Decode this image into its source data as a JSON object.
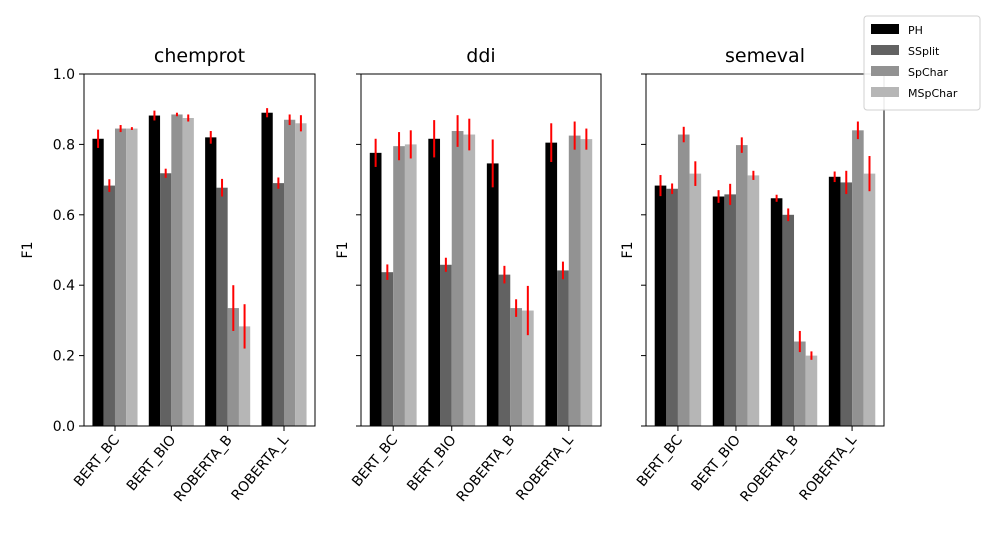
{
  "chart_data": {
    "type": "bar",
    "legend": {
      "placement": "top-right"
    },
    "series_meta": [
      {
        "name": "PH",
        "color": "#000000"
      },
      {
        "name": "SSplit",
        "color": "#626262"
      },
      {
        "name": "SpChar",
        "color": "#929292"
      },
      {
        "name": "MSpChar",
        "color": "#b6b6b6"
      }
    ],
    "error_color": "#ff0000",
    "ylim": [
      0,
      1.0
    ],
    "yticks": [
      "0.0",
      "0.2",
      "0.4",
      "0.6",
      "0.8",
      "1.0"
    ],
    "ytick_values": [
      0,
      0.2,
      0.4,
      0.6,
      0.8,
      1.0
    ],
    "panels": [
      {
        "title": "chemprot",
        "ylabel": "F1",
        "categories": [
          "BERT_BC",
          "BERT_BIO",
          "ROBERTA_B",
          "ROBERTA_L"
        ],
        "series": [
          {
            "name": "PH",
            "values": [
              0.816,
              0.882,
              0.82,
              0.89
            ],
            "errors": [
              0.026,
              0.014,
              0.018,
              0.013
            ]
          },
          {
            "name": "SSplit",
            "values": [
              0.683,
              0.718,
              0.677,
              0.69
            ],
            "errors": [
              0.018,
              0.013,
              0.025,
              0.016
            ]
          },
          {
            "name": "SpChar",
            "values": [
              0.845,
              0.885,
              0.335,
              0.87
            ],
            "errors": [
              0.01,
              0.005,
              0.065,
              0.015
            ]
          },
          {
            "name": "MSpChar",
            "values": [
              0.845,
              0.875,
              0.283,
              0.86
            ],
            "errors": [
              0.004,
              0.01,
              0.063,
              0.023
            ]
          }
        ]
      },
      {
        "title": "ddi",
        "ylabel": "F1",
        "categories": [
          "BERT_BC",
          "BERT_BIO",
          "ROBERTA_B",
          "ROBERTA_L"
        ],
        "series": [
          {
            "name": "PH",
            "values": [
              0.776,
              0.816,
              0.746,
              0.805
            ],
            "errors": [
              0.04,
              0.053,
              0.068,
              0.055
            ]
          },
          {
            "name": "SSplit",
            "values": [
              0.437,
              0.458,
              0.43,
              0.442
            ],
            "errors": [
              0.022,
              0.02,
              0.025,
              0.025
            ]
          },
          {
            "name": "SpChar",
            "values": [
              0.795,
              0.838,
              0.335,
              0.825
            ],
            "errors": [
              0.04,
              0.045,
              0.025,
              0.04
            ]
          },
          {
            "name": "MSpChar",
            "values": [
              0.8,
              0.828,
              0.328,
              0.815
            ],
            "errors": [
              0.04,
              0.045,
              0.07,
              0.03
            ]
          }
        ]
      },
      {
        "title": "semeval",
        "ylabel": "F1",
        "categories": [
          "BERT_BC",
          "BERT_BIO",
          "ROBERTA_B",
          "ROBERTA_L"
        ],
        "series": [
          {
            "name": "PH",
            "values": [
              0.683,
              0.652,
              0.647,
              0.708
            ],
            "errors": [
              0.03,
              0.018,
              0.01,
              0.015
            ]
          },
          {
            "name": "SSplit",
            "values": [
              0.674,
              0.658,
              0.6,
              0.692
            ],
            "errors": [
              0.015,
              0.03,
              0.018,
              0.033
            ]
          },
          {
            "name": "SpChar",
            "values": [
              0.828,
              0.798,
              0.24,
              0.84
            ],
            "errors": [
              0.022,
              0.022,
              0.03,
              0.025
            ]
          },
          {
            "name": "MSpChar",
            "values": [
              0.717,
              0.712,
              0.2,
              0.717
            ],
            "errors": [
              0.035,
              0.013,
              0.012,
              0.05
            ]
          }
        ]
      }
    ]
  }
}
